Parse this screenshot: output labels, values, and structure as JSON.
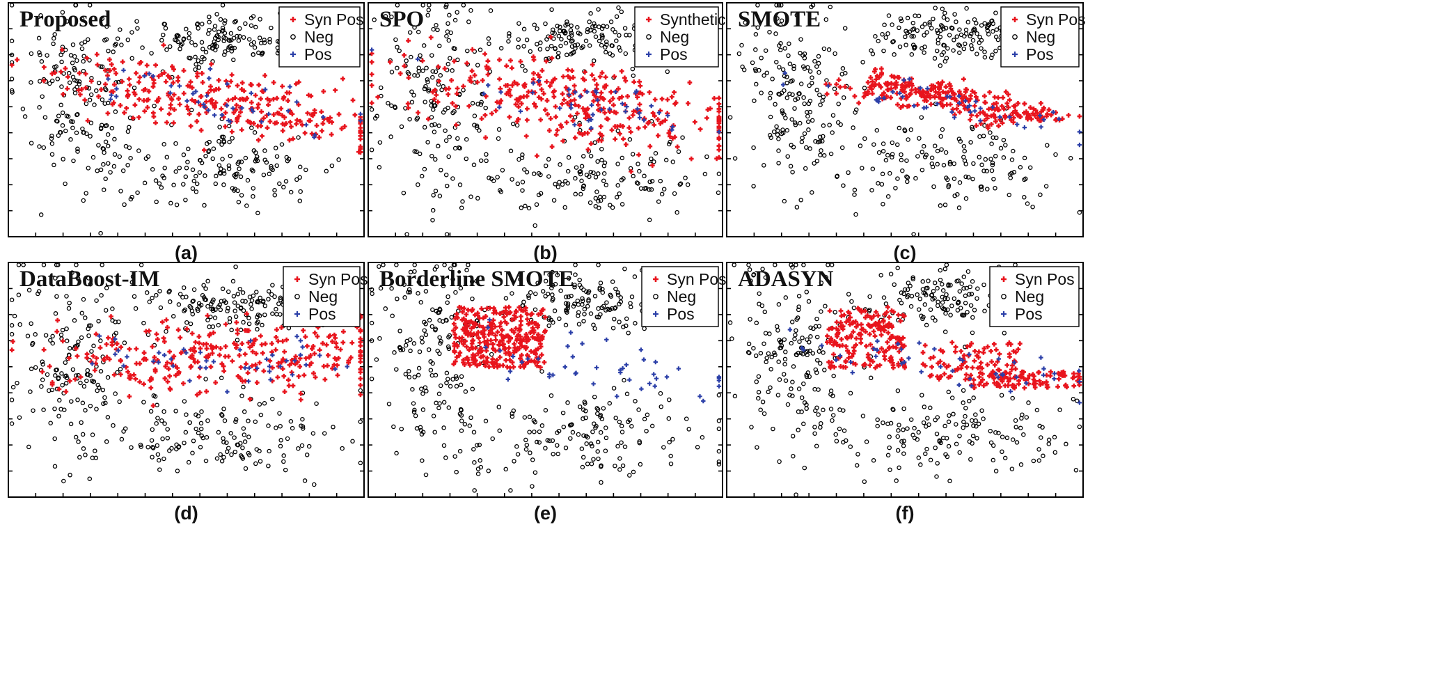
{
  "figure": {
    "panels": [
      {
        "title": "Proposed",
        "label": "(a)",
        "legend": [
          "Syn Pos",
          "Neg",
          "Pos"
        ]
      },
      {
        "title": "SPO",
        "label": "(b)",
        "legend": [
          "Synthetic",
          "Neg",
          "Pos"
        ]
      },
      {
        "title": "SMOTE",
        "label": "(c)",
        "legend": [
          "Syn Pos",
          "Neg",
          "Pos"
        ]
      },
      {
        "title": "DataBoost-IM",
        "label": "(d)",
        "legend": [
          "Syn Pos",
          "Neg",
          "Pos"
        ]
      },
      {
        "title": "Borderline SMOTE",
        "label": "(e)",
        "legend": [
          "Syn Pos",
          "Neg",
          "Pos"
        ]
      },
      {
        "title": "ADASYN",
        "label": "(f)",
        "legend": [
          "Syn Pos",
          "Neg",
          "Pos"
        ]
      }
    ]
  },
  "chart_data": [
    {
      "type": "scatter",
      "title": "Proposed",
      "label": "(a)",
      "xlim": [
        0,
        1
      ],
      "ylim": [
        0,
        1
      ],
      "grid": false,
      "legend_position": "top-right",
      "xticks": 12,
      "yticks": 8,
      "series": [
        {
          "name": "Syn Pos",
          "color": "#e8141d",
          "marker": "plus",
          "clusters": [
            {
              "cx": 0.6,
              "cy": 0.58,
              "w": 0.58,
              "h": 0.16,
              "tilt": 0.22,
              "count": 300
            }
          ]
        },
        {
          "name": "Neg",
          "color": "#000000",
          "marker": "circle",
          "clusters": [
            {
              "cx": 0.19,
              "cy": 0.62,
              "w": 0.2,
              "h": 0.52,
              "tilt": 0.4,
              "count": 170
            },
            {
              "cx": 0.62,
              "cy": 0.84,
              "w": 0.3,
              "h": 0.14,
              "tilt": 0.0,
              "count": 150
            },
            {
              "cx": 0.6,
              "cy": 0.3,
              "w": 0.42,
              "h": 0.22,
              "tilt": 0.0,
              "count": 150
            }
          ]
        },
        {
          "name": "Pos",
          "color": "#2b3fa8",
          "marker": "plus",
          "clusters": [
            {
              "cx": 0.6,
              "cy": 0.58,
              "w": 0.52,
              "h": 0.12,
              "tilt": 0.22,
              "count": 45
            }
          ]
        }
      ]
    },
    {
      "type": "scatter",
      "title": "SPO",
      "label": "(b)",
      "xlim": [
        0,
        1
      ],
      "ylim": [
        0,
        1
      ],
      "grid": false,
      "legend_position": "top-right",
      "xticks": 12,
      "yticks": 8,
      "series": [
        {
          "name": "Synthetic",
          "color": "#e8141d",
          "marker": "plus",
          "clusters": [
            {
              "cx": 0.6,
              "cy": 0.57,
              "w": 0.6,
              "h": 0.2,
              "tilt": 0.24,
              "count": 340
            }
          ]
        },
        {
          "name": "Neg",
          "color": "#000000",
          "marker": "circle",
          "clusters": [
            {
              "cx": 0.19,
              "cy": 0.6,
              "w": 0.2,
              "h": 0.54,
              "tilt": 0.4,
              "count": 170
            },
            {
              "cx": 0.62,
              "cy": 0.84,
              "w": 0.3,
              "h": 0.14,
              "tilt": 0.0,
              "count": 150
            },
            {
              "cx": 0.62,
              "cy": 0.27,
              "w": 0.42,
              "h": 0.22,
              "tilt": 0.0,
              "count": 150
            }
          ]
        },
        {
          "name": "Pos",
          "color": "#2b3fa8",
          "marker": "plus",
          "clusters": [
            {
              "cx": 0.6,
              "cy": 0.57,
              "w": 0.52,
              "h": 0.13,
              "tilt": 0.24,
              "count": 45
            }
          ]
        }
      ]
    },
    {
      "type": "scatter",
      "title": "SMOTE",
      "label": "(c)",
      "xlim": [
        0,
        1
      ],
      "ylim": [
        0,
        1
      ],
      "grid": false,
      "legend_position": "top-right",
      "xticks": 12,
      "yticks": 8,
      "series": [
        {
          "name": "Syn Pos",
          "color": "#e8141d",
          "marker": "plus",
          "clusters": [
            {
              "cx": 0.44,
              "cy": 0.67,
              "w": 0.08,
              "h": 0.06,
              "tilt": 0.0,
              "count": 30
            },
            {
              "cx": 0.6,
              "cy": 0.6,
              "w": 0.3,
              "h": 0.07,
              "tilt": 0.15,
              "count": 180
            },
            {
              "cx": 0.74,
              "cy": 0.51,
              "w": 0.12,
              "h": 0.05,
              "tilt": 0.0,
              "count": 40
            },
            {
              "cx": 0.86,
              "cy": 0.52,
              "w": 0.1,
              "h": 0.03,
              "tilt": 0.0,
              "count": 40
            }
          ]
        },
        {
          "name": "Neg",
          "color": "#000000",
          "marker": "circle",
          "clusters": [
            {
              "cx": 0.19,
              "cy": 0.62,
              "w": 0.2,
              "h": 0.52,
              "tilt": 0.4,
              "count": 170
            },
            {
              "cx": 0.62,
              "cy": 0.85,
              "w": 0.3,
              "h": 0.14,
              "tilt": 0.0,
              "count": 150
            },
            {
              "cx": 0.61,
              "cy": 0.31,
              "w": 0.42,
              "h": 0.22,
              "tilt": 0.0,
              "count": 150
            }
          ]
        },
        {
          "name": "Pos",
          "color": "#2b3fa8",
          "marker": "plus",
          "clusters": [
            {
              "cx": 0.62,
              "cy": 0.57,
              "w": 0.52,
              "h": 0.1,
              "tilt": 0.22,
              "count": 45
            }
          ]
        }
      ]
    },
    {
      "type": "scatter",
      "title": "DataBoost-IM",
      "label": "(d)",
      "xlim": [
        0,
        1
      ],
      "ylim": [
        0,
        1
      ],
      "grid": false,
      "legend_position": "top-right",
      "xticks": 12,
      "yticks": 8,
      "series": [
        {
          "name": "Syn Pos",
          "color": "#e8141d",
          "marker": "plus",
          "clusters": [
            {
              "cx": 0.6,
              "cy": 0.6,
              "w": 0.56,
              "h": 0.18,
              "tilt": 0.0,
              "count": 300
            }
          ]
        },
        {
          "name": "Neg",
          "color": "#000000",
          "marker": "circle",
          "clusters": [
            {
              "cx": 0.19,
              "cy": 0.6,
              "w": 0.2,
              "h": 0.54,
              "tilt": 0.4,
              "count": 170
            },
            {
              "cx": 0.62,
              "cy": 0.82,
              "w": 0.3,
              "h": 0.14,
              "tilt": 0.0,
              "count": 150
            },
            {
              "cx": 0.61,
              "cy": 0.27,
              "w": 0.42,
              "h": 0.22,
              "tilt": 0.0,
              "count": 150
            }
          ]
        },
        {
          "name": "Pos",
          "color": "#2b3fa8",
          "marker": "plus",
          "clusters": [
            {
              "cx": 0.62,
              "cy": 0.58,
              "w": 0.54,
              "h": 0.12,
              "tilt": 0.1,
              "count": 45
            }
          ]
        }
      ]
    },
    {
      "type": "scatter",
      "title": "Borderline SMOTE",
      "label": "(e)",
      "xlim": [
        0,
        1
      ],
      "ylim": [
        0,
        1
      ],
      "grid": false,
      "legend_position": "top-right",
      "xticks": 12,
      "yticks": 8,
      "series": [
        {
          "name": "Syn Pos",
          "color": "#e8141d",
          "marker": "plus",
          "clusters": [
            {
              "cx": 0.37,
              "cy": 0.68,
              "w": 0.13,
              "h": 0.13,
              "tilt": 0.0,
              "count": 320,
              "shape": "box"
            }
          ]
        },
        {
          "name": "Neg",
          "color": "#000000",
          "marker": "circle",
          "clusters": [
            {
              "cx": 0.19,
              "cy": 0.61,
              "w": 0.2,
              "h": 0.52,
              "tilt": 0.4,
              "count": 170
            },
            {
              "cx": 0.62,
              "cy": 0.84,
              "w": 0.3,
              "h": 0.14,
              "tilt": 0.0,
              "count": 150
            },
            {
              "cx": 0.62,
              "cy": 0.28,
              "w": 0.42,
              "h": 0.22,
              "tilt": 0.0,
              "count": 150
            }
          ]
        },
        {
          "name": "Pos",
          "color": "#2b3fa8",
          "marker": "plus",
          "clusters": [
            {
              "cx": 0.63,
              "cy": 0.56,
              "w": 0.54,
              "h": 0.12,
              "tilt": 0.2,
              "count": 45
            }
          ]
        }
      ]
    },
    {
      "type": "scatter",
      "title": "ADASYN",
      "label": "(f)",
      "xlim": [
        0,
        1
      ],
      "ylim": [
        0,
        1
      ],
      "grid": false,
      "legend_position": "top-right",
      "xticks": 12,
      "yticks": 8,
      "series": [
        {
          "name": "Syn Pos",
          "color": "#e8141d",
          "marker": "plus",
          "clusters": [
            {
              "cx": 0.39,
              "cy": 0.68,
              "w": 0.11,
              "h": 0.13,
              "tilt": 0.0,
              "count": 200,
              "shape": "box"
            },
            {
              "cx": 0.69,
              "cy": 0.58,
              "w": 0.14,
              "h": 0.08,
              "tilt": 0.0,
              "count": 90,
              "shape": "box"
            },
            {
              "cx": 0.84,
              "cy": 0.5,
              "w": 0.16,
              "h": 0.035,
              "tilt": 0.0,
              "count": 110,
              "shape": "box"
            }
          ]
        },
        {
          "name": "Neg",
          "color": "#000000",
          "marker": "circle",
          "clusters": [
            {
              "cx": 0.19,
              "cy": 0.6,
              "w": 0.2,
              "h": 0.52,
              "tilt": 0.4,
              "count": 170
            },
            {
              "cx": 0.62,
              "cy": 0.84,
              "w": 0.3,
              "h": 0.14,
              "tilt": 0.0,
              "count": 150
            },
            {
              "cx": 0.61,
              "cy": 0.29,
              "w": 0.42,
              "h": 0.22,
              "tilt": 0.0,
              "count": 150
            }
          ]
        },
        {
          "name": "Pos",
          "color": "#2b3fa8",
          "marker": "plus",
          "clusters": [
            {
              "cx": 0.63,
              "cy": 0.56,
              "w": 0.54,
              "h": 0.1,
              "tilt": 0.2,
              "count": 45
            }
          ]
        }
      ]
    }
  ]
}
